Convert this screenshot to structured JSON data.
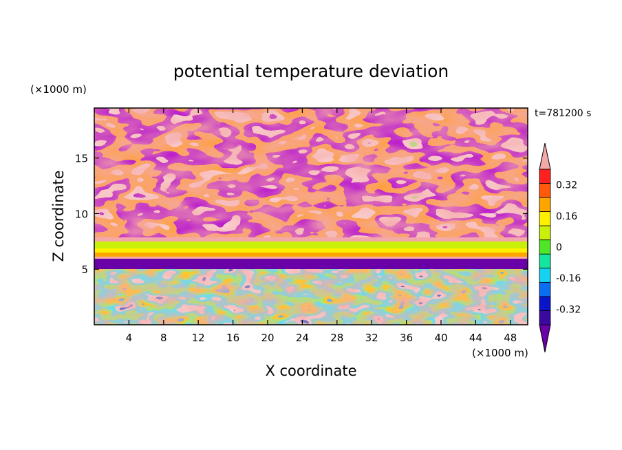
{
  "chart_data": {
    "type": "heatmap",
    "title": "potential temperature deviation",
    "xlabel": "X coordinate",
    "ylabel": "Z coordinate",
    "x_unit": "(×1000 m)",
    "y_unit": "(×1000 m)",
    "time_label": "t=781200 s",
    "xlim": [
      0,
      50
    ],
    "ylim": [
      0,
      19.5
    ],
    "x_ticks": [
      4,
      8,
      12,
      16,
      20,
      24,
      28,
      32,
      36,
      40,
      44,
      48
    ],
    "y_ticks": [
      5,
      10,
      15
    ],
    "colorbar": {
      "levels": [
        -0.4,
        -0.32,
        -0.24,
        -0.16,
        -0.08,
        0,
        0.08,
        0.16,
        0.24,
        0.32,
        0.4
      ],
      "colors": [
        "#6a00a8",
        "#3a0aa0",
        "#0a14c8",
        "#0a6ef0",
        "#14d2f0",
        "#14e6a0",
        "#50e628",
        "#c8f00a",
        "#fff000",
        "#ffa500",
        "#ff5a0a",
        "#ff2020",
        "#f5a8a8"
      ],
      "labels": [
        "0.32",
        "0.16",
        "0",
        "-0.16",
        "-0.32"
      ],
      "label_values": [
        0.32,
        0.16,
        0,
        -0.16,
        -0.32
      ],
      "extend": "both"
    }
  }
}
